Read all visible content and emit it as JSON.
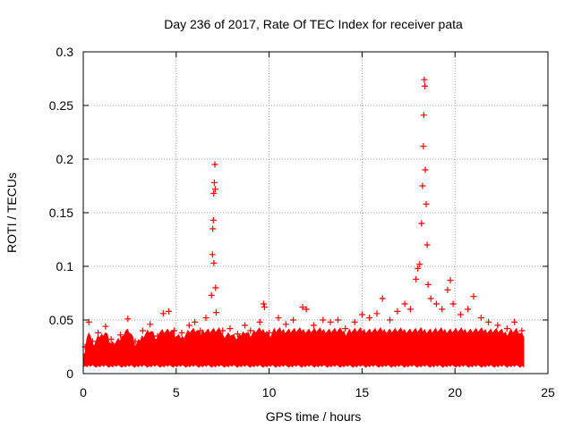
{
  "chart_data": {
    "type": "scatter",
    "title": "Day 236 of 2017, Rate Of TEC Index for receiver pata",
    "xlabel": "GPS time / hours",
    "ylabel": "ROTI / TECUs",
    "xlim": [
      0,
      25
    ],
    "ylim": [
      0,
      0.3
    ],
    "x_ticks": [
      0,
      5,
      10,
      15,
      20,
      25
    ],
    "y_ticks": [
      0,
      0.05,
      0.1,
      0.15,
      0.2,
      0.25,
      0.3
    ],
    "x_tick_labels": [
      "0",
      "5",
      "10",
      "15",
      "20",
      "25"
    ],
    "y_tick_labels": [
      "0",
      "0.05",
      "0.1",
      "0.15",
      "0.2",
      "0.25",
      "0.3"
    ],
    "grid": true,
    "marker": "+",
    "color": "#ff0000",
    "series": [
      {
        "name": "ROTI",
        "points": [
          [
            0.1,
            0.025
          ],
          [
            0.3,
            0.048
          ],
          [
            0.5,
            0.03
          ],
          [
            0.8,
            0.038
          ],
          [
            1.2,
            0.044
          ],
          [
            1.5,
            0.032
          ],
          [
            2.0,
            0.036
          ],
          [
            2.4,
            0.051
          ],
          [
            2.8,
            0.03
          ],
          [
            3.2,
            0.04
          ],
          [
            3.6,
            0.046
          ],
          [
            4.0,
            0.035
          ],
          [
            4.3,
            0.056
          ],
          [
            4.6,
            0.058
          ],
          [
            4.9,
            0.04
          ],
          [
            5.3,
            0.038
          ],
          [
            5.7,
            0.045
          ],
          [
            6.0,
            0.048
          ],
          [
            6.3,
            0.04
          ],
          [
            6.6,
            0.052
          ],
          [
            6.9,
            0.073
          ],
          [
            6.95,
            0.111
          ],
          [
            6.97,
            0.135
          ],
          [
            7.0,
            0.143
          ],
          [
            7.02,
            0.168
          ],
          [
            7.05,
            0.178
          ],
          [
            7.08,
            0.195
          ],
          [
            7.1,
            0.172
          ],
          [
            7.03,
            0.103
          ],
          [
            7.12,
            0.08
          ],
          [
            7.15,
            0.057
          ],
          [
            7.5,
            0.04
          ],
          [
            7.9,
            0.042
          ],
          [
            8.3,
            0.037
          ],
          [
            8.7,
            0.045
          ],
          [
            9.0,
            0.04
          ],
          [
            9.5,
            0.048
          ],
          [
            9.7,
            0.065
          ],
          [
            9.75,
            0.062
          ],
          [
            10.0,
            0.038
          ],
          [
            10.5,
            0.052
          ],
          [
            10.9,
            0.046
          ],
          [
            11.3,
            0.05
          ],
          [
            11.8,
            0.062
          ],
          [
            12.0,
            0.06
          ],
          [
            12.4,
            0.045
          ],
          [
            12.9,
            0.05
          ],
          [
            13.3,
            0.048
          ],
          [
            13.7,
            0.05
          ],
          [
            14.1,
            0.042
          ],
          [
            14.6,
            0.048
          ],
          [
            15.0,
            0.055
          ],
          [
            15.4,
            0.052
          ],
          [
            15.8,
            0.056
          ],
          [
            16.1,
            0.07
          ],
          [
            16.5,
            0.05
          ],
          [
            16.9,
            0.058
          ],
          [
            17.3,
            0.065
          ],
          [
            17.6,
            0.06
          ],
          [
            17.9,
            0.088
          ],
          [
            18.0,
            0.098
          ],
          [
            18.1,
            0.102
          ],
          [
            18.2,
            0.14
          ],
          [
            18.25,
            0.175
          ],
          [
            18.3,
            0.212
          ],
          [
            18.32,
            0.241
          ],
          [
            18.35,
            0.274
          ],
          [
            18.38,
            0.268
          ],
          [
            18.4,
            0.19
          ],
          [
            18.45,
            0.158
          ],
          [
            18.5,
            0.12
          ],
          [
            18.55,
            0.083
          ],
          [
            18.7,
            0.07
          ],
          [
            19.0,
            0.065
          ],
          [
            19.3,
            0.06
          ],
          [
            19.6,
            0.078
          ],
          [
            19.75,
            0.087
          ],
          [
            19.9,
            0.065
          ],
          [
            20.3,
            0.055
          ],
          [
            20.7,
            0.06
          ],
          [
            21.0,
            0.072
          ],
          [
            21.4,
            0.052
          ],
          [
            21.8,
            0.048
          ],
          [
            22.3,
            0.045
          ],
          [
            22.8,
            0.042
          ],
          [
            23.2,
            0.048
          ],
          [
            23.6,
            0.04
          ]
        ]
      }
    ]
  }
}
